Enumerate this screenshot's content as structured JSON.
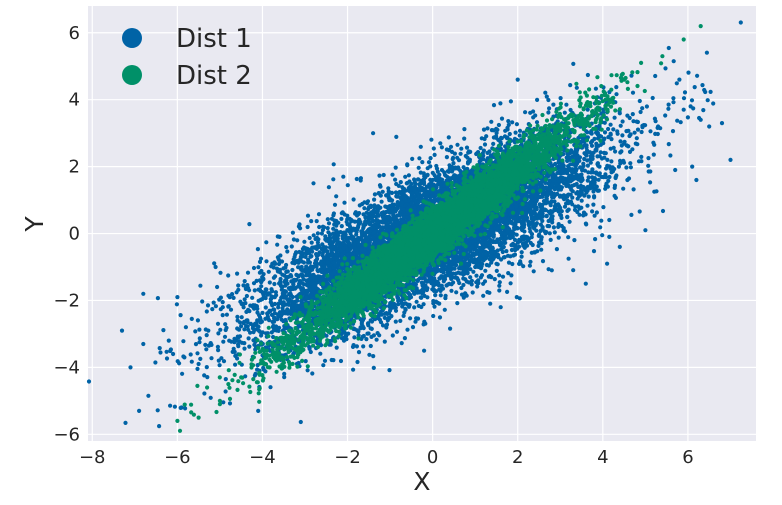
{
  "chart_data": {
    "type": "scatter",
    "xlabel": "X",
    "ylabel": "Y",
    "xlim": [
      -8.1,
      7.6
    ],
    "ylim": [
      -6.2,
      6.8
    ],
    "x_ticks": [
      -8,
      -6,
      -4,
      -2,
      0,
      2,
      4,
      6
    ],
    "y_ticks": [
      -6,
      -4,
      -2,
      0,
      2,
      4,
      6
    ],
    "x_tick_labels": [
      "−8",
      "−6",
      "−4",
      "−2",
      "0",
      "2",
      "4",
      "6"
    ],
    "y_tick_labels": [
      "−6",
      "−4",
      "−2",
      "0",
      "2",
      "4",
      "6"
    ],
    "grid": true,
    "legend_position": "top-left",
    "series": [
      {
        "name": "Dist 1",
        "color": "#0063a6",
        "distribution": {
          "mean": [
            0,
            0
          ],
          "std_x": 2.0,
          "std_y": 1.5,
          "correlation": 0.8,
          "n": 9000
        },
        "points": [
          [
            -7.3,
            -2.9
          ],
          [
            -7.1,
            -4.0
          ],
          [
            -6.9,
            -5.3
          ],
          [
            -6.8,
            -3.3
          ],
          [
            -6.8,
            -1.8
          ],
          [
            -6.2,
            -3.2
          ],
          [
            -6.1,
            -3.6
          ],
          [
            -6.0,
            -1.9
          ],
          [
            -5.9,
            -5.2
          ],
          [
            -5.8,
            -2.8
          ],
          [
            -5.5,
            -3.9
          ],
          [
            -5.1,
            -1.0
          ],
          [
            -4.1,
            -5.3
          ],
          [
            -3.6,
            -0.1
          ],
          [
            -2.8,
            1.5
          ],
          [
            -2.1,
            1.7
          ],
          [
            -1.4,
            3.0
          ],
          [
            -0.2,
            -2.7
          ],
          [
            -0.2,
            -3.5
          ],
          [
            1.0,
            -1.0
          ],
          [
            1.6,
            -2.2
          ],
          [
            2.0,
            4.6
          ],
          [
            2.8,
            -1.1
          ],
          [
            3.6,
            -1.5
          ],
          [
            4.1,
            -0.9
          ],
          [
            4.4,
            -0.4
          ],
          [
            5.0,
            0.1
          ],
          [
            5.3,
            3.2
          ],
          [
            5.7,
            1.9
          ],
          [
            5.8,
            4.6
          ],
          [
            5.9,
            3.7
          ],
          [
            6.1,
            2.0
          ],
          [
            6.2,
            1.6
          ],
          [
            6.3,
            3.4
          ],
          [
            6.5,
            3.2
          ],
          [
            6.8,
            3.3
          ],
          [
            7.0,
            2.2
          ]
        ]
      },
      {
        "name": "Dist 2",
        "color": "#009068",
        "distribution": {
          "mean": [
            0,
            0
          ],
          "std_x": 1.6,
          "std_y": 1.6,
          "correlation": 0.97,
          "n": 6000
        },
        "points": [
          [
            -6.0,
            -5.6
          ],
          [
            -5.5,
            -5.5
          ],
          [
            -5.3,
            -4.6
          ],
          [
            -5.0,
            -5.0
          ],
          [
            -4.8,
            -4.5
          ],
          [
            -4.5,
            -4.3
          ],
          [
            -4.2,
            -3.7
          ],
          [
            -3.9,
            -3.5
          ],
          [
            4.2,
            4.3
          ],
          [
            4.5,
            4.6
          ],
          [
            4.9,
            5.1
          ],
          [
            5.4,
            5.3
          ],
          [
            5.9,
            5.8
          ],
          [
            6.3,
            6.2
          ]
        ]
      }
    ]
  }
}
